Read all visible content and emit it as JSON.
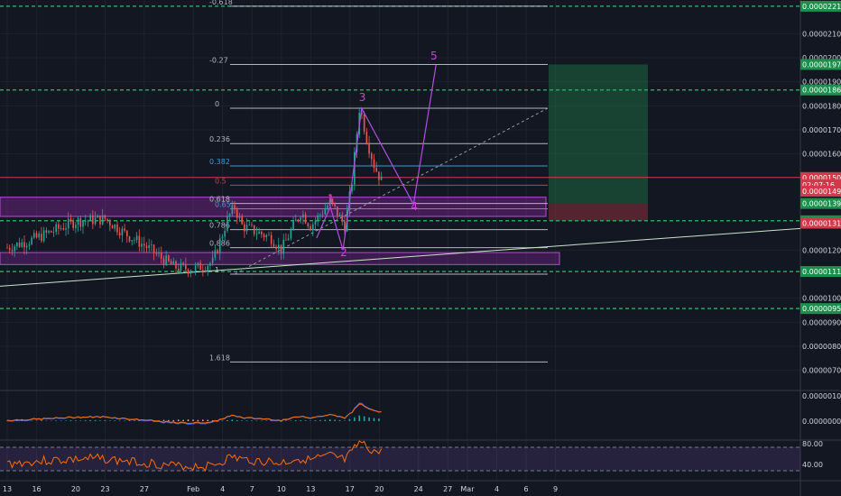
{
  "chart_data": {
    "type": "candlestick",
    "price_scale": {
      "ticks": [
        "0.00002100",
        "0.00002000",
        "0.00001900",
        "0.00001800",
        "0.00001700",
        "0.00001600",
        "0.00001200",
        "0.00001000",
        "0.00000900",
        "0.00000800",
        "0.00000700"
      ],
      "range": [
        6.2e-06,
        2.24e-05
      ]
    },
    "price_tags": [
      {
        "price": 2.214e-05,
        "label": "0.00002214",
        "color": "#1b8f4b"
      },
      {
        "price": 1.972e-05,
        "label": "0.00001972",
        "color": "#1b8f4b"
      },
      {
        "price": 1.866e-05,
        "label": "0.00001866",
        "color": "#1b8f4b"
      },
      {
        "price": 1.502e-05,
        "label": "0.00001502",
        "color": "#d3384a"
      },
      {
        "price": 1.472e-05,
        "label": "02:07:16",
        "color": "#d3384a"
      },
      {
        "price": 1.445e-05,
        "label": "0.00001497",
        "color": "#d3384a"
      },
      {
        "price": 1.394e-05,
        "label": "0.00001394",
        "color": "#1b8f4b"
      },
      {
        "price": 1.322e-05,
        "label": "0.00001322",
        "color": "#1b8f4b"
      },
      {
        "price": 1.312e-05,
        "label": "0.00001312",
        "color": "#d3384a"
      },
      {
        "price": 1.111e-05,
        "label": "0.00001111",
        "color": "#1b8f4b"
      },
      {
        "price": 9.57e-06,
        "label": "0.00000957",
        "color": "#1b8f4b"
      }
    ],
    "dashed_levels": [
      2.214e-05,
      1.866e-05,
      1.322e-05,
      1.111e-05,
      9.57e-06
    ],
    "fib_levels": [
      {
        "ratio": "-0.618",
        "price": 2.214e-05,
        "color": "#b2b5be"
      },
      {
        "ratio": "-0.27",
        "price": 1.972e-05,
        "color": "#b2b5be"
      },
      {
        "ratio": "0",
        "price": 1.79e-05,
        "color": "#b2b5be"
      },
      {
        "ratio": "0.236",
        "price": 1.643e-05,
        "color": "#b2b5be"
      },
      {
        "ratio": "0.382",
        "price": 1.55e-05,
        "color": "#3a9bd6"
      },
      {
        "ratio": "0.5",
        "price": 1.47e-05,
        "color": "#d3384a"
      },
      {
        "ratio": "0.618",
        "price": 1.394e-05,
        "color": "#b2b5be"
      },
      {
        "ratio": "0.65",
        "price": 1.372e-05,
        "color": "#3a9bd6"
      },
      {
        "ratio": "0.786",
        "price": 1.285e-05,
        "color": "#b2b5be"
      },
      {
        "ratio": "0.886",
        "price": 1.21e-05,
        "color": "#b2b5be"
      },
      {
        "ratio": "1",
        "price": 1.1e-05,
        "color": "#b2b5be"
      },
      {
        "ratio": "1.618",
        "price": 7.35e-06,
        "color": "#b2b5be"
      }
    ],
    "wave_labels": [
      {
        "label": "1",
        "date_index": 33.0,
        "price": 1.398e-05
      },
      {
        "label": "2",
        "date_index": 34.3,
        "price": 1.175e-05
      },
      {
        "label": "3",
        "date_index": 36.2,
        "price": 1.82e-05
      },
      {
        "label": "4",
        "date_index": 41.5,
        "price": 1.366e-05
      },
      {
        "label": "5",
        "date_index": 43.5,
        "price": 1.992e-05
      }
    ],
    "x_axis": {
      "labels": [
        {
          "text": "13",
          "index": 0
        },
        {
          "text": "16",
          "index": 3
        },
        {
          "text": "20",
          "index": 7
        },
        {
          "text": "23",
          "index": 10
        },
        {
          "text": "27",
          "index": 14
        },
        {
          "text": "Feb",
          "index": 19
        },
        {
          "text": "4",
          "index": 22
        },
        {
          "text": "7",
          "index": 25
        },
        {
          "text": "10",
          "index": 28
        },
        {
          "text": "13",
          "index": 31
        },
        {
          "text": "17",
          "index": 35
        },
        {
          "text": "20",
          "index": 38
        },
        {
          "text": "24",
          "index": 42
        },
        {
          "text": "27",
          "index": 45
        },
        {
          "text": "Mar",
          "index": 47
        },
        {
          "text": "4",
          "index": 50
        },
        {
          "text": "6",
          "index": 53
        },
        {
          "text": "9",
          "index": 56
        }
      ]
    },
    "macd": {
      "ticks": [
        "0.00000100",
        "0.00000000"
      ]
    },
    "rsi": {
      "ticks": [
        "80.00",
        "40.00"
      ],
      "bands": [
        70,
        30
      ]
    }
  }
}
